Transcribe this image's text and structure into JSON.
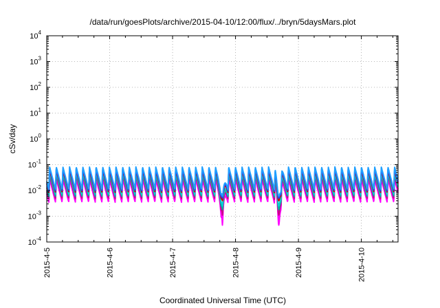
{
  "chart_data": {
    "type": "line",
    "title": "/data/run/goesPlots/archive/2015-04-10/12:00/flux/../bryn/5daysMars.plot",
    "xlabel": "Coordinated Universal Time (UTC)",
    "ylabel": "cSv/day",
    "yscale": "log",
    "grid": true,
    "legend": "none",
    "xlim": [
      "2015-04-05",
      "2015-04-10T14:00"
    ],
    "ylim": [
      0.0001,
      10000
    ],
    "x_ticks": [
      "2015-4-5",
      "2015-4-6",
      "2015-4-7",
      "2015-4-8",
      "2015-4-9",
      "2015-4-10"
    ],
    "y_ticks": [
      {
        "base": "10",
        "exp": "-4",
        "value": 0.0001
      },
      {
        "base": "10",
        "exp": "-3",
        "value": 0.001
      },
      {
        "base": "10",
        "exp": "-2",
        "value": 0.01
      },
      {
        "base": "10",
        "exp": "-1",
        "value": 0.1
      },
      {
        "base": "10",
        "exp": "0",
        "value": 1
      },
      {
        "base": "10",
        "exp": "1",
        "value": 10
      },
      {
        "base": "10",
        "exp": "2",
        "value": 100
      },
      {
        "base": "10",
        "exp": "3",
        "value": 1000
      },
      {
        "base": "10",
        "exp": "4",
        "value": 10000
      }
    ],
    "pattern": {
      "cycle_start": "2015-04-05T00:48",
      "cycle_hours": 2.53,
      "rise_fraction": 0.12
    },
    "events": [
      {
        "time": "2015-04-07T19:00",
        "drop_factor": 0.3
      },
      {
        "time": "2015-04-08T16:30",
        "drop_factor": 0.25
      }
    ],
    "series": [
      {
        "color": "#ff00ff",
        "peak": 0.028,
        "trough": 0.0035,
        "event_min": 0.00045
      },
      {
        "color": "#ff00ff",
        "peak": 0.033,
        "trough": 0.0042,
        "event_min": 0.0007
      },
      {
        "color": "#cc0088",
        "peak": 0.038,
        "trough": 0.0048,
        "event_min": 0.0011
      },
      {
        "color": "#00b0a0",
        "peak": 0.045,
        "trough": 0.0058,
        "event_min": 0.0018
      },
      {
        "color": "#00d0d0",
        "peak": 0.052,
        "trough": 0.0068,
        "event_min": 0.0025
      },
      {
        "color": "#d00000",
        "peak": 0.062,
        "trough": 0.0085,
        "event_min": 0.004
      },
      {
        "color": "#2040ff",
        "peak": 0.072,
        "trough": 0.0095,
        "event_min": 0.005
      },
      {
        "color": "#20a0ff",
        "peak": 0.082,
        "trough": 0.011,
        "event_min": 0.006
      }
    ]
  }
}
